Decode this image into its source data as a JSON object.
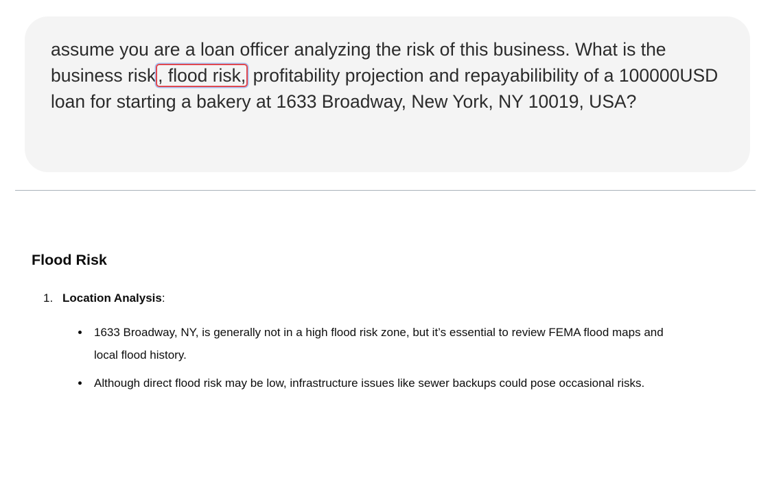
{
  "user_message": {
    "before": "assume you are a loan officer analyzing the risk of this business. What is the business risk",
    "highlight": ", flood risk,",
    "after": " profitability projection and repayabilibility of a 100000USD loan for starting a bakery at 1633 Broadway, New York, NY 10019, USA?"
  },
  "response": {
    "heading": "Flood Risk",
    "items": [
      {
        "number": "1.",
        "title": "Location Analysis",
        "suffix": ":",
        "bullets": [
          "1633 Broadway, NY, is generally not in a high flood risk zone, but it’s essential to review FEMA flood maps and local flood history.",
          "Although direct flood risk may be low, infrastructure issues like sewer backups could pose occasional risks."
        ]
      }
    ]
  },
  "colors": {
    "bubble_background": "#f4f4f4",
    "highlight_border": "#e0484f",
    "highlight_glow": "#a9c4f5",
    "divider": "#a8b2ba"
  }
}
